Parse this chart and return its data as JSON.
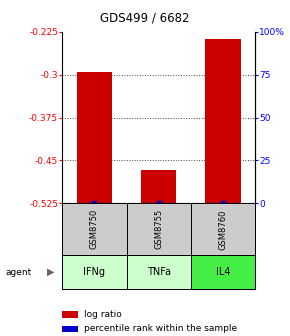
{
  "title": "GDS499 / 6682",
  "samples": [
    "GSM8750",
    "GSM8755",
    "GSM8760"
  ],
  "agents": [
    "IFNg",
    "TNFa",
    "IL4"
  ],
  "agent_colors": [
    "#ccffcc",
    "#ccffcc",
    "#44ee44"
  ],
  "log_ratios": [
    -0.295,
    -0.466,
    -0.237
  ],
  "ylim_left": [
    -0.525,
    -0.225
  ],
  "ylim_right": [
    0,
    100
  ],
  "yticks_left": [
    -0.225,
    -0.3,
    -0.375,
    -0.45,
    -0.525
  ],
  "yticks_right": [
    100,
    75,
    50,
    25,
    0
  ],
  "yticks_right_pct": [
    100,
    75,
    50,
    25,
    0
  ],
  "bar_color": "#cc0000",
  "percentile_color": "#0000cc",
  "sample_bg_color": "#cccccc",
  "grid_color": "#444444",
  "bar_width": 0.55,
  "legend_log_ratio": "log ratio",
  "legend_percentile": "percentile rank within the sample"
}
